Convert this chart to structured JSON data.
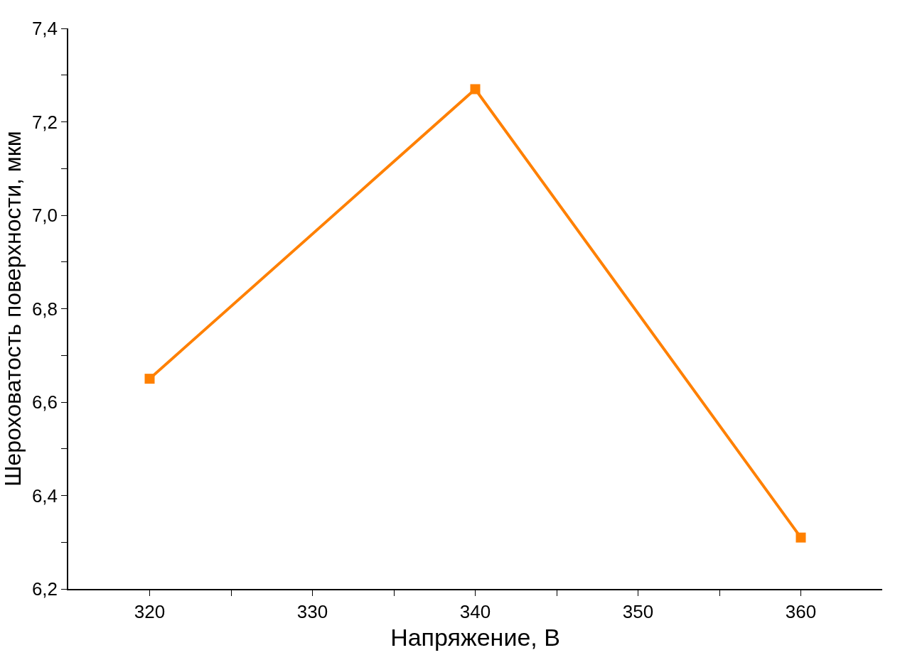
{
  "chart_data": {
    "type": "line",
    "xlabel": "Напряжение, В",
    "ylabel": "Шероховатость поверхности, мкм",
    "x": [
      320,
      340,
      360
    ],
    "series": [
      {
        "color": "#ff8000",
        "values": [
          6.65,
          7.27,
          6.31
        ]
      }
    ],
    "xlim": [
      315,
      365
    ],
    "xticks": [
      320,
      {
        "value": 325,
        "label": null
      },
      330,
      {
        "value": 335,
        "label": null
      },
      340,
      {
        "value": 345,
        "label": null
      },
      350,
      {
        "value": 355,
        "label": null
      },
      360
    ],
    "ylim": [
      6.2,
      7.4
    ],
    "yticks": [
      {
        "value": 6.2,
        "label": "6,2"
      },
      {
        "value": 6.3,
        "label": null
      },
      {
        "value": 6.4,
        "label": "6,4"
      },
      {
        "value": 6.5,
        "label": null
      },
      {
        "value": 6.6,
        "label": "6,6"
      },
      {
        "value": 6.7,
        "label": null
      },
      {
        "value": 6.8,
        "label": "6,8"
      },
      {
        "value": 6.9,
        "label": null
      },
      {
        "value": 7.0,
        "label": "7,0"
      },
      {
        "value": 7.1,
        "label": null
      },
      {
        "value": 7.2,
        "label": "7,2"
      },
      {
        "value": 7.3,
        "label": null
      },
      {
        "value": 7.4,
        "label": "7,4"
      }
    ],
    "marker": "square",
    "line_style": "solid"
  }
}
